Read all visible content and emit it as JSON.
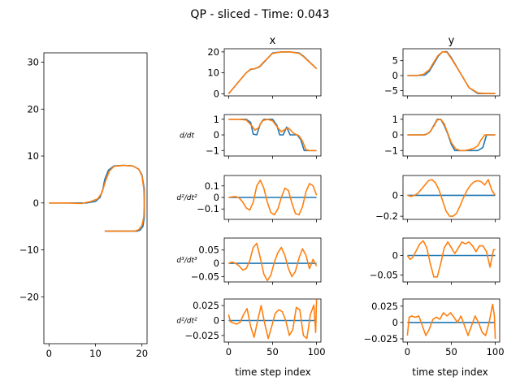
{
  "figure": {
    "title": "QP - sliced - Time: 0.043"
  },
  "colors": {
    "blue": "#1f77b4",
    "orange": "#ff7f0e"
  },
  "chart_data": [
    {
      "id": "path",
      "type": "line",
      "title": "",
      "xlim": [
        -1.1,
        21.1
      ],
      "ylim": [
        -30,
        32
      ],
      "xticks": [
        0,
        10,
        20
      ],
      "yticks": [
        -20,
        -10,
        0,
        10,
        20,
        30
      ],
      "series": [
        {
          "color": "blue",
          "x": [
            0,
            4,
            8,
            10,
            11,
            11.6,
            12,
            12.8,
            14,
            16,
            18,
            19.3,
            20,
            20.5,
            20.5,
            20.5,
            20.2,
            19.6,
            19,
            18,
            16,
            14,
            12
          ],
          "y": [
            0,
            0,
            0,
            0.3,
            1.2,
            3,
            5,
            7,
            7.9,
            8,
            7.9,
            7.2,
            6,
            3,
            0,
            -3,
            -5,
            -5.8,
            -6,
            -6,
            -6,
            -6,
            -6
          ]
        },
        {
          "color": "orange",
          "x": [
            0,
            4,
            7,
            9,
            10.5,
            11.4,
            12.2,
            13,
            14,
            16,
            18,
            19.3,
            20,
            20.4,
            20.5,
            20.4,
            20,
            19.3,
            18.5,
            17,
            15,
            13,
            12
          ],
          "y": [
            0,
            0,
            -0.1,
            0.3,
            0.9,
            2.2,
            4.8,
            6.8,
            7.8,
            8,
            7.9,
            7.2,
            5.8,
            3,
            0,
            -3,
            -4.8,
            -5.7,
            -6,
            -6,
            -6,
            -6,
            -6
          ]
        }
      ]
    },
    {
      "id": "x_pos",
      "type": "line",
      "title": "x",
      "ylabel": "",
      "xlim": [
        -5,
        105
      ],
      "ylim": [
        -1,
        21.5
      ],
      "yticks": [
        0,
        10,
        20
      ],
      "xticks": [
        0,
        50,
        100
      ],
      "series": [
        {
          "color": "blue",
          "x": [
            0,
            10,
            20,
            25,
            30,
            35,
            40,
            50,
            60,
            70,
            80,
            85,
            90,
            100
          ],
          "y": [
            0,
            5,
            10,
            11.6,
            12,
            12.8,
            15,
            19.5,
            20,
            20,
            19.5,
            18,
            16,
            12
          ]
        },
        {
          "color": "orange",
          "x": [
            0,
            10,
            20,
            25,
            30,
            35,
            40,
            50,
            60,
            70,
            80,
            85,
            90,
            100
          ],
          "y": [
            0,
            5,
            10,
            11.8,
            12,
            13,
            15.2,
            19.3,
            20,
            20,
            19.3,
            17.8,
            15.8,
            12
          ]
        }
      ]
    },
    {
      "id": "y_pos",
      "type": "line",
      "title": "y",
      "ylabel": "",
      "xlim": [
        -5,
        105
      ],
      "ylim": [
        -6.8,
        9
      ],
      "yticks": [
        -5,
        0,
        5
      ],
      "xticks": [
        0,
        50,
        100
      ],
      "series": [
        {
          "color": "blue",
          "x": [
            0,
            10,
            20,
            25,
            30,
            35,
            40,
            45,
            50,
            60,
            70,
            80,
            90,
            100
          ],
          "y": [
            0,
            0,
            0.2,
            1.5,
            4,
            6.5,
            8,
            8,
            6,
            1,
            -4,
            -6,
            -6,
            -6
          ]
        },
        {
          "color": "orange",
          "x": [
            0,
            10,
            18,
            25,
            30,
            35,
            40,
            45,
            50,
            60,
            70,
            80,
            90,
            100
          ],
          "y": [
            0,
            0,
            0.4,
            2,
            4.5,
            6.8,
            8,
            7.8,
            5.7,
            1,
            -4,
            -5.8,
            -6,
            -6
          ]
        }
      ]
    },
    {
      "id": "x_d1",
      "type": "line",
      "ylabel": "d/dt",
      "xlim": [
        -5,
        105
      ],
      "ylim": [
        -1.35,
        1.3
      ],
      "yticks": [
        -1,
        0,
        1
      ],
      "xticks": [
        0,
        50,
        100
      ],
      "series": [
        {
          "color": "blue",
          "x": [
            0,
            15,
            20,
            25,
            28,
            32,
            36,
            40,
            45,
            50,
            55,
            58,
            62,
            66,
            70,
            78,
            82,
            86,
            90,
            95,
            100
          ],
          "y": [
            1,
            1,
            1,
            0.8,
            0.05,
            0,
            0.7,
            1,
            1,
            1,
            0.6,
            0,
            0,
            0.5,
            0,
            0,
            -0.3,
            -1,
            -1,
            -1,
            -1
          ]
        },
        {
          "color": "orange",
          "x": [
            0,
            12,
            20,
            26,
            30,
            34,
            38,
            44,
            50,
            56,
            60,
            64,
            68,
            74,
            80,
            84,
            88,
            92,
            100
          ],
          "y": [
            1,
            1,
            0.95,
            0.6,
            0.3,
            0.45,
            0.9,
            1,
            0.9,
            0.45,
            0.2,
            0.35,
            0.45,
            0.1,
            -0.05,
            -0.4,
            -0.95,
            -1,
            -1
          ]
        }
      ]
    },
    {
      "id": "y_d1",
      "type": "line",
      "ylabel": "",
      "xlim": [
        -5,
        105
      ],
      "ylim": [
        -1.35,
        1.3
      ],
      "yticks": [
        -1,
        0,
        1
      ],
      "xticks": [
        0,
        50,
        100
      ],
      "series": [
        {
          "color": "blue",
          "x": [
            0,
            18,
            22,
            26,
            30,
            34,
            38,
            42,
            46,
            50,
            54,
            58,
            62,
            66,
            70,
            80,
            86,
            90,
            95,
            100
          ],
          "y": [
            0,
            0,
            0.05,
            0.2,
            0.6,
            1,
            1,
            0.6,
            0.05,
            -0.6,
            -1,
            -1,
            -1,
            -1,
            -1,
            -1,
            -0.8,
            0,
            0,
            0
          ]
        },
        {
          "color": "orange",
          "x": [
            0,
            15,
            20,
            25,
            30,
            34,
            38,
            42,
            46,
            50,
            55,
            60,
            65,
            70,
            76,
            80,
            84,
            88,
            92,
            100
          ],
          "y": [
            0,
            0,
            0,
            0.15,
            0.55,
            0.95,
            1,
            0.7,
            0.1,
            -0.5,
            -0.9,
            -1,
            -1,
            -0.95,
            -0.85,
            -0.7,
            -0.3,
            0,
            0,
            0
          ]
        }
      ]
    },
    {
      "id": "x_d2",
      "type": "line",
      "ylabel": "d²/dt²",
      "xlim": [
        -5,
        105
      ],
      "ylim": [
        -0.19,
        0.19
      ],
      "yticks": [
        -0.1,
        0.0,
        0.1
      ],
      "xticks": [
        0,
        50,
        100
      ],
      "series": [
        {
          "color": "blue",
          "x": [
            0,
            100
          ],
          "y": [
            0,
            0
          ]
        },
        {
          "color": "orange",
          "x": [
            0,
            4,
            8,
            12,
            16,
            20,
            24,
            28,
            32,
            36,
            40,
            44,
            48,
            52,
            56,
            60,
            64,
            68,
            72,
            76,
            80,
            84,
            88,
            92,
            96,
            100
          ],
          "y": [
            0,
            0.005,
            0.008,
            -0.005,
            -0.04,
            -0.09,
            -0.11,
            -0.04,
            0.1,
            0.15,
            0.08,
            -0.04,
            -0.13,
            -0.15,
            -0.1,
            0.0,
            0.08,
            0.06,
            -0.05,
            -0.14,
            -0.15,
            -0.08,
            0.05,
            0.12,
            0.1,
            0.02
          ]
        }
      ]
    },
    {
      "id": "y_d2",
      "type": "line",
      "ylabel": "",
      "xlim": [
        -5,
        105
      ],
      "ylim": [
        -0.23,
        0.19
      ],
      "yticks": [
        -0.2,
        0.0
      ],
      "xticks": [
        0,
        50,
        100
      ],
      "series": [
        {
          "color": "blue",
          "x": [
            0,
            100
          ],
          "y": [
            0,
            0
          ]
        },
        {
          "color": "orange",
          "x": [
            0,
            4,
            8,
            12,
            16,
            20,
            24,
            28,
            32,
            36,
            40,
            44,
            48,
            52,
            56,
            60,
            64,
            68,
            72,
            76,
            80,
            84,
            88,
            92,
            96,
            100
          ],
          "y": [
            0,
            -0.01,
            0.0,
            0.02,
            0.06,
            0.1,
            0.14,
            0.15,
            0.12,
            0.05,
            -0.05,
            -0.15,
            -0.2,
            -0.2,
            -0.17,
            -0.1,
            -0.02,
            0.05,
            0.1,
            0.13,
            0.14,
            0.13,
            0.1,
            0.15,
            0.05,
            0.0
          ]
        }
      ]
    },
    {
      "id": "x_d3",
      "type": "line",
      "ylabel": "d³/dt³",
      "xlim": [
        -5,
        105
      ],
      "ylim": [
        -0.07,
        0.095
      ],
      "yticks": [
        -0.05,
        0.0,
        0.05
      ],
      "xticks": [
        0,
        50,
        100
      ],
      "series": [
        {
          "color": "blue",
          "x": [
            0,
            100
          ],
          "y": [
            0,
            0
          ]
        },
        {
          "color": "orange",
          "x": [
            0,
            4,
            8,
            12,
            16,
            20,
            24,
            28,
            32,
            36,
            40,
            44,
            48,
            52,
            56,
            60,
            64,
            68,
            72,
            76,
            80,
            84,
            88,
            92,
            96,
            100
          ],
          "y": [
            0,
            0.005,
            0,
            -0.01,
            -0.025,
            -0.02,
            0.01,
            0.06,
            0.075,
            0.02,
            -0.04,
            -0.065,
            -0.045,
            0.005,
            0.04,
            0.06,
            0.03,
            -0.02,
            -0.05,
            -0.03,
            0.02,
            0.055,
            0.03,
            -0.02,
            0.015,
            -0.01
          ]
        }
      ]
    },
    {
      "id": "y_d3",
      "type": "line",
      "ylabel": "",
      "xlim": [
        -5,
        105
      ],
      "ylim": [
        -0.068,
        0.045
      ],
      "yticks": [
        -0.05,
        0.0
      ],
      "xticks": [
        0,
        50,
        100
      ],
      "series": [
        {
          "color": "blue",
          "x": [
            0,
            100
          ],
          "y": [
            0,
            0
          ]
        },
        {
          "color": "orange",
          "x": [
            0,
            3,
            6,
            10,
            14,
            18,
            22,
            26,
            30,
            34,
            38,
            42,
            46,
            50,
            54,
            58,
            62,
            66,
            70,
            74,
            78,
            82,
            86,
            90,
            94,
            98,
            100
          ],
          "y": [
            0,
            -0.01,
            -0.005,
            0.012,
            0.03,
            0.038,
            0.02,
            -0.02,
            -0.055,
            -0.055,
            -0.02,
            0.02,
            0.035,
            0.02,
            0.005,
            0.02,
            0.035,
            0.03,
            0.035,
            0.025,
            0.01,
            0.025,
            0.025,
            0.01,
            -0.03,
            0.015,
            0.015
          ]
        }
      ]
    },
    {
      "id": "x_d4",
      "type": "line",
      "ylabel": "d²/dt²",
      "xlim": [
        -5,
        105
      ],
      "ylim": [
        -0.036,
        0.036
      ],
      "yticks": [
        -0.025,
        0.0,
        0.025
      ],
      "xticks": [
        0,
        50,
        100
      ],
      "series": [
        {
          "color": "blue",
          "x": [
            0,
            100
          ],
          "y": [
            0,
            0
          ]
        },
        {
          "color": "orange",
          "x": [
            0,
            2,
            5,
            9,
            13,
            17,
            21,
            25,
            29,
            33,
            37,
            41,
            45,
            49,
            53,
            57,
            61,
            65,
            69,
            73,
            77,
            81,
            85,
            89,
            93,
            97,
            99,
            100
          ],
          "y": [
            0.01,
            -0.002,
            -0.004,
            -0.006,
            -0.003,
            0.01,
            0.02,
            -0.01,
            -0.028,
            0.0,
            0.025,
            -0.005,
            -0.03,
            -0.01,
            0.012,
            0.018,
            0.015,
            0.0,
            -0.025,
            -0.015,
            0.022,
            0.018,
            -0.025,
            -0.03,
            0.01,
            0.026,
            -0.02,
            0.035
          ]
        }
      ]
    },
    {
      "id": "y_d4",
      "type": "line",
      "ylabel": "",
      "xlim": [
        -5,
        105
      ],
      "ylim": [
        -0.03,
        0.036
      ],
      "yticks": [
        -0.025,
        0.0,
        0.025
      ],
      "xticks": [
        0,
        50,
        100
      ],
      "series": [
        {
          "color": "blue",
          "x": [
            0,
            100
          ],
          "y": [
            0,
            0
          ]
        },
        {
          "color": "orange",
          "x": [
            0,
            2,
            5,
            9,
            13,
            17,
            21,
            25,
            29,
            33,
            37,
            41,
            45,
            49,
            53,
            57,
            61,
            65,
            69,
            73,
            77,
            81,
            85,
            89,
            93,
            97,
            99,
            100
          ],
          "y": [
            -0.02,
            0.008,
            0.01,
            0.008,
            0.01,
            -0.005,
            -0.02,
            -0.01,
            0.005,
            0.008,
            0.005,
            0.015,
            0.01,
            0.015,
            0.008,
            0.0,
            0.01,
            -0.005,
            -0.02,
            -0.005,
            0.01,
            0.0,
            -0.015,
            -0.02,
            0.0,
            0.028,
            0.01,
            -0.025
          ]
        }
      ]
    }
  ],
  "axes_labels": {
    "x_bottom": "time step index",
    "y_bottom": "time step index"
  }
}
